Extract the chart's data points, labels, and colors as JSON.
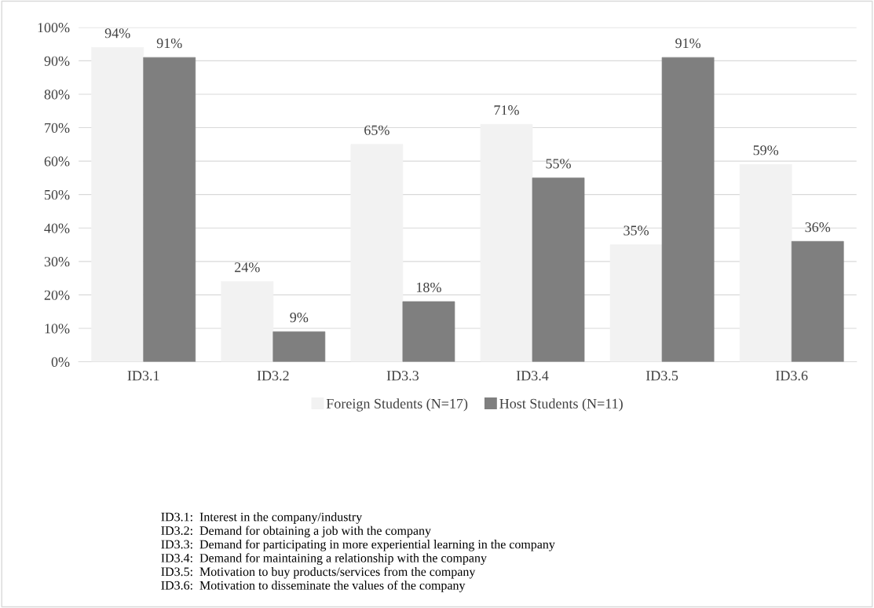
{
  "chart_data": {
    "type": "bar",
    "categories": [
      "ID3.1",
      "ID3.2",
      "ID3.3",
      "ID3.4",
      "ID3.5",
      "ID3.6"
    ],
    "series": [
      {
        "name": "Foreign Students (N=17)",
        "color": "#f2f2f2",
        "values": [
          94,
          24,
          65,
          71,
          35,
          59
        ],
        "value_labels": [
          "94%",
          "24%",
          "65%",
          "71%",
          "35%",
          "59%"
        ]
      },
      {
        "name": "Host Students (N=11)",
        "color": "#7f7f7f",
        "values": [
          91,
          9,
          18,
          55,
          91,
          36
        ],
        "value_labels": [
          "91%",
          "9%",
          "18%",
          "55%",
          "91%",
          "36%"
        ]
      }
    ],
    "ylim": [
      0,
      100
    ],
    "yticks": [
      {
        "value": 0,
        "label": "0%"
      },
      {
        "value": 10,
        "label": "10%"
      },
      {
        "value": 20,
        "label": "20%"
      },
      {
        "value": 30,
        "label": "30%"
      },
      {
        "value": 40,
        "label": "40%"
      },
      {
        "value": 50,
        "label": "50%"
      },
      {
        "value": 60,
        "label": "60%"
      },
      {
        "value": 70,
        "label": "70%"
      },
      {
        "value": 80,
        "label": "80%"
      },
      {
        "value": 90,
        "label": "90%"
      },
      {
        "value": 100,
        "label": "100%"
      }
    ],
    "grid": "y",
    "legend": "bottom",
    "annotations": [
      "ID3.1:  Interest in the company/industry",
      "ID3.2:  Demand for obtaining a job with the company",
      "ID3.3:  Demand for participating in more experiential learning in the company",
      "ID3.4:  Demand for maintaining a relationship with the company",
      "ID3.5:  Motivation to buy products/services from the company",
      "ID3.6:  Motivation to disseminate the values of the company"
    ]
  }
}
